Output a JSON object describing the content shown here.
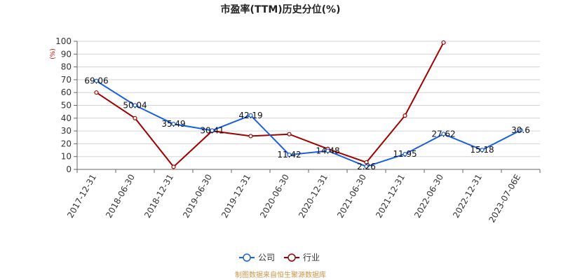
{
  "chart_data": {
    "type": "line",
    "title": "市盈率(TTM)历史分位(%)",
    "ylabel": "(%)",
    "ylim": [
      0,
      100
    ],
    "yticks": [
      0,
      10,
      20,
      30,
      40,
      50,
      60,
      70,
      80,
      90,
      100
    ],
    "grid": true,
    "legend_position": "bottom-center",
    "categories": [
      "2017-12-31",
      "2018-06-30",
      "2018-12-31",
      "2019-06-30",
      "2019-12-31",
      "2020-06-30",
      "2020-12-31",
      "2021-06-30",
      "2021-12-31",
      "2022-06-30",
      "2022-12-31",
      "2023-07-06E"
    ],
    "series": [
      {
        "name": "公司",
        "color": "#1a5fe0",
        "values": [
          69.06,
          50.04,
          35.49,
          30.41,
          42.19,
          11.42,
          14.48,
          2.26,
          11.95,
          27.62,
          15.18,
          30.6
        ],
        "labels": [
          "69.06",
          "50.04",
          "35.49",
          "30.41",
          "42.19",
          "11.42",
          "14.48",
          "2.26",
          "11.95",
          "27.62",
          "15.18",
          "30.6"
        ]
      },
      {
        "name": "行业",
        "color": "#a00000",
        "values": [
          60,
          40,
          2,
          30,
          26,
          27.5,
          16,
          5.5,
          42,
          99,
          null,
          null
        ]
      }
    ],
    "source": "制图数据来自恒生聚源数据库"
  }
}
